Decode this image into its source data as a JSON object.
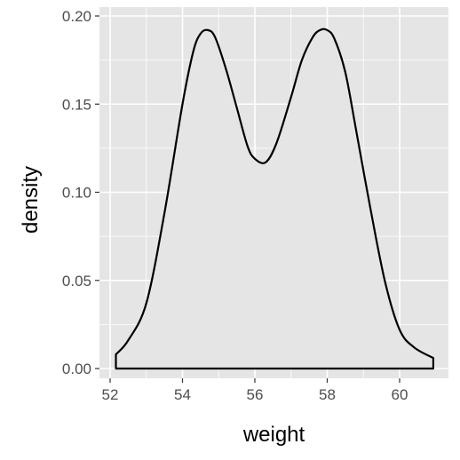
{
  "chart_data": {
    "type": "area",
    "xlabel": "weight",
    "ylabel": "density",
    "xlim": [
      52,
      61
    ],
    "ylim": [
      0,
      0.2
    ],
    "x_ticks": [
      52,
      54,
      56,
      58,
      60
    ],
    "x_tick_labels": [
      "52",
      "54",
      "56",
      "58",
      "60"
    ],
    "y_ticks": [
      0,
      0.05,
      0.1,
      0.15,
      0.2
    ],
    "y_tick_labels": [
      "0.00",
      "0.05",
      "0.10",
      "0.15",
      "0.20"
    ],
    "grid": true,
    "panel_background": "#e5e5e5",
    "grid_color": "#ffffff",
    "line_color": "#000000",
    "series": [
      {
        "x": [
          52.16,
          52.5,
          53.0,
          53.5,
          54.0,
          54.3,
          54.5,
          54.7,
          54.9,
          55.2,
          55.5,
          55.8,
          56.0,
          56.3,
          56.6,
          57.0,
          57.3,
          57.6,
          57.8,
          58.0,
          58.2,
          58.5,
          58.8,
          59.2,
          59.6,
          60.0,
          60.4,
          60.93
        ],
        "y": [
          0.008,
          0.016,
          0.037,
          0.088,
          0.15,
          0.18,
          0.19,
          0.192,
          0.188,
          0.17,
          0.148,
          0.126,
          0.119,
          0.117,
          0.128,
          0.154,
          0.175,
          0.188,
          0.192,
          0.192,
          0.187,
          0.168,
          0.135,
          0.09,
          0.049,
          0.022,
          0.012,
          0.006
        ]
      }
    ]
  }
}
